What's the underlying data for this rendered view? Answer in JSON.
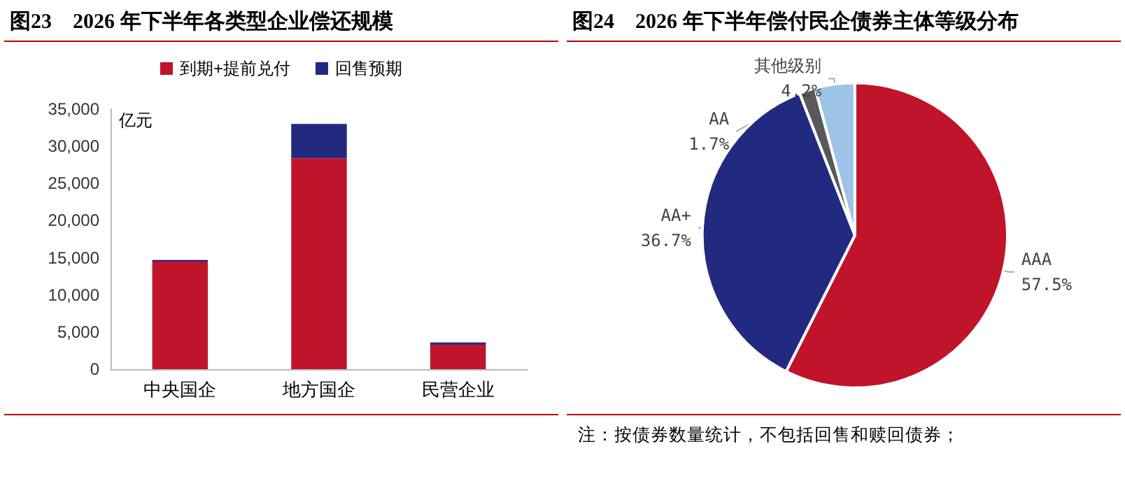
{
  "chart_data": [
    {
      "type": "bar",
      "title": "图23　2026 年下半年各类型企业偿还规模",
      "ylabel": "亿元",
      "categories": [
        "中央国企",
        "地方国企",
        "民营企业"
      ],
      "stacked": true,
      "series": [
        {
          "name": "到期+提前兑付",
          "color": "#c0142a",
          "values": [
            14500,
            28400,
            3300
          ]
        },
        {
          "name": "回售预期",
          "color": "#222a80",
          "values": [
            200,
            4600,
            300
          ]
        }
      ],
      "ylim": [
        0,
        35000
      ],
      "yticks": [
        0,
        {
          "value": 5000,
          "label": "5,000"
        },
        {
          "value": 10000,
          "label": "10,000"
        },
        {
          "value": 15000,
          "label": "15,000"
        },
        {
          "value": 20000,
          "label": "20,000"
        },
        {
          "value": 25000,
          "label": "25,000"
        },
        {
          "value": 30000,
          "label": "30,000"
        },
        {
          "value": 35000,
          "label": "35,000"
        }
      ],
      "legend": "top",
      "grid": false
    },
    {
      "type": "pie",
      "title": "图24　2026 年下半年偿付民企债券主体等级分布",
      "categories": [
        "AAA",
        "AA+",
        "AA",
        "其他级别"
      ],
      "values": [
        57.5,
        36.7,
        1.7,
        4.2
      ],
      "colors": [
        "#c0142a",
        "#222a80",
        "#595959",
        "#9dc3e6"
      ],
      "value_labels": [
        "57.5%",
        "36.7%",
        "1.7%",
        "4.2%"
      ],
      "annotations": [
        "注：按债券数量统计，不包括回售和赎回债券；"
      ]
    }
  ]
}
